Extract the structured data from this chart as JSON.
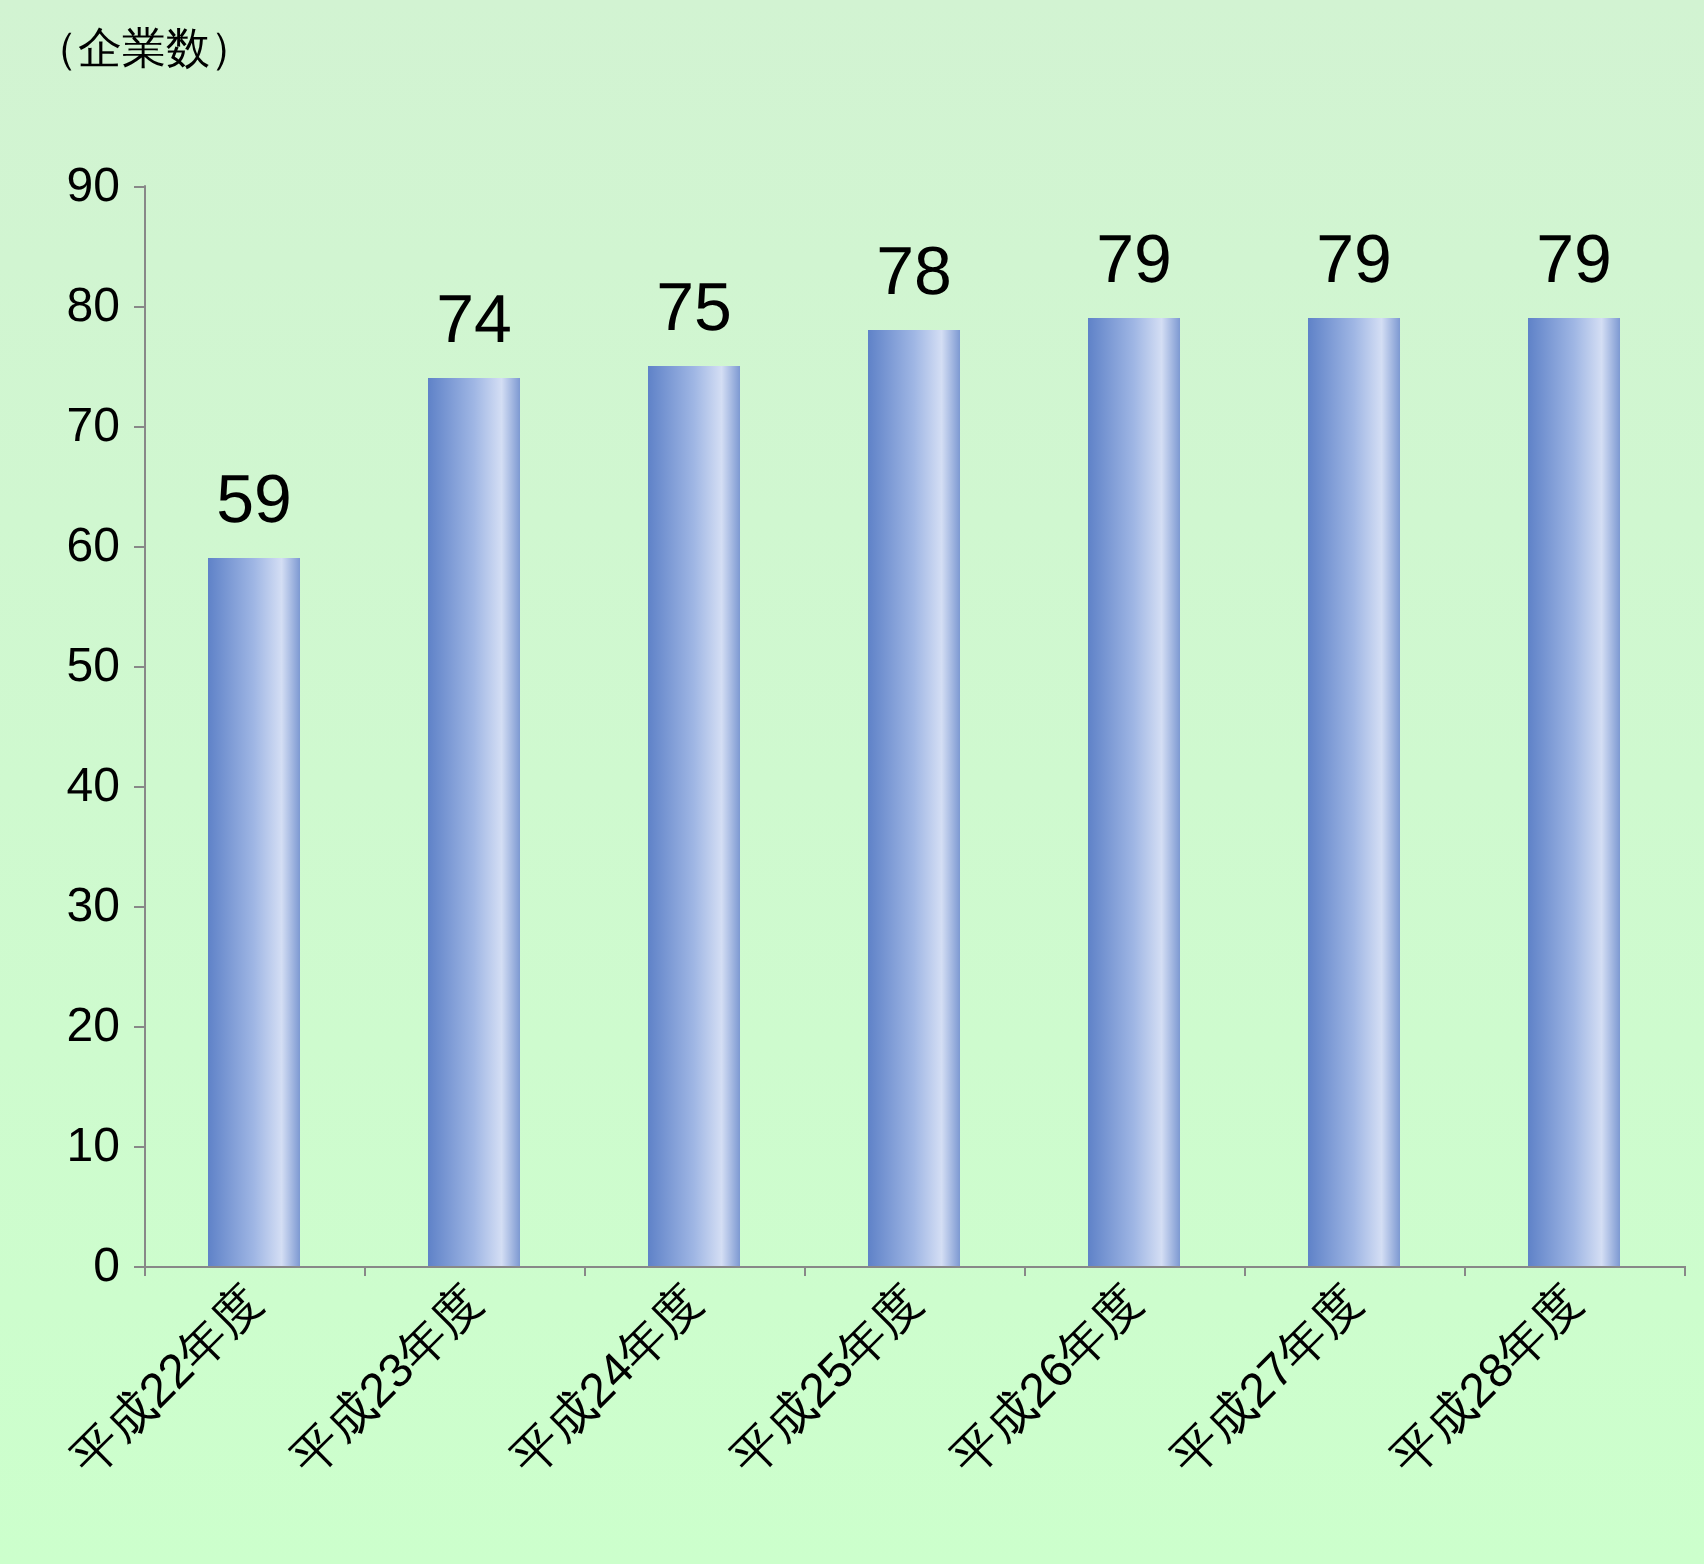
{
  "chart_data": {
    "type": "bar",
    "ylabel": "（企業数）",
    "categories": [
      "平成22年度",
      "平成23年度",
      "平成24年度",
      "平成25年度",
      "平成26年度",
      "平成27年度",
      "平成28年度"
    ],
    "values": [
      59,
      74,
      75,
      78,
      79,
      79,
      79
    ],
    "color": "#9fb6e4",
    "ylim": [
      0,
      90
    ],
    "yticks": [
      0,
      10,
      20,
      30,
      40,
      50,
      60,
      70,
      80,
      90
    ],
    "grid": false,
    "data_labels": true
  }
}
